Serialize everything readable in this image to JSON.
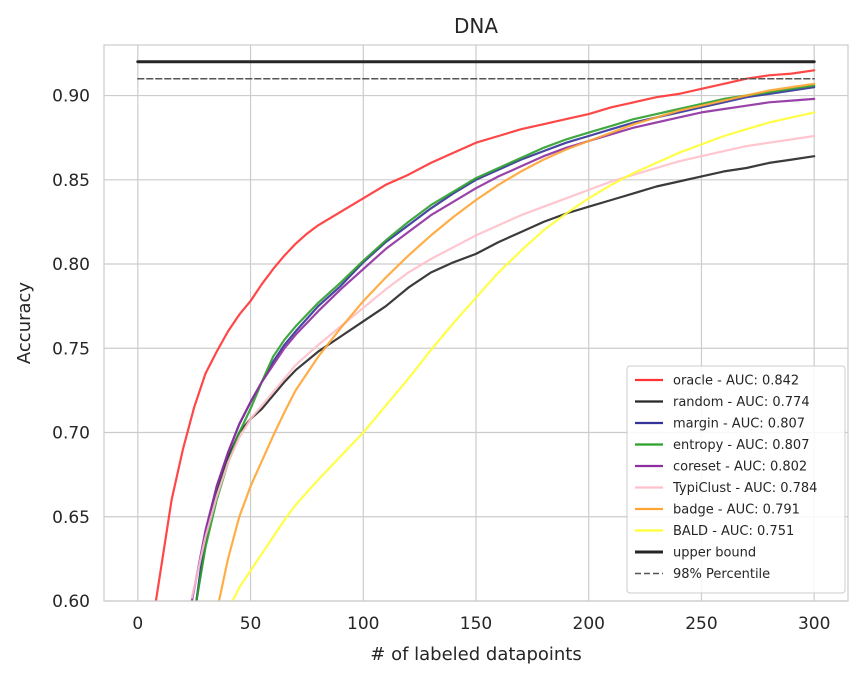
{
  "chart_data": {
    "type": "line",
    "title": "DNA",
    "xlabel": "# of labeled datapoints",
    "ylabel": "Accuracy",
    "xlim": [
      -15,
      315
    ],
    "ylim": [
      0.6,
      0.93
    ],
    "x_ticks": [
      0,
      50,
      100,
      150,
      200,
      250,
      300
    ],
    "y_ticks": [
      0.6,
      0.65,
      0.7,
      0.75,
      0.8,
      0.85,
      0.9
    ],
    "x_tick_labels": [
      "0",
      "50",
      "100",
      "150",
      "200",
      "250",
      "300"
    ],
    "y_tick_labels": [
      "0.60",
      "0.65",
      "0.70",
      "0.75",
      "0.80",
      "0.85",
      "0.90"
    ],
    "grid": true,
    "legend_position": "bottom-right",
    "series": [
      {
        "name": "oracle - AUC: 0.842",
        "color": "#ff3333",
        "style": "solid",
        "x": [
          8,
          15,
          20,
          25,
          30,
          35,
          40,
          45,
          50,
          55,
          60,
          65,
          70,
          75,
          80,
          90,
          100,
          110,
          120,
          130,
          140,
          150,
          160,
          170,
          180,
          190,
          200,
          210,
          220,
          230,
          240,
          250,
          260,
          270,
          280,
          290,
          300
        ],
        "y": [
          0.6,
          0.66,
          0.69,
          0.715,
          0.735,
          0.748,
          0.76,
          0.77,
          0.778,
          0.788,
          0.797,
          0.805,
          0.812,
          0.818,
          0.823,
          0.831,
          0.839,
          0.847,
          0.853,
          0.86,
          0.866,
          0.872,
          0.876,
          0.88,
          0.883,
          0.886,
          0.889,
          0.893,
          0.896,
          0.899,
          0.901,
          0.904,
          0.907,
          0.91,
          0.912,
          0.913,
          0.915
        ]
      },
      {
        "name": "random - AUC: 0.774",
        "color": "#262626",
        "style": "solid",
        "x": [
          26,
          30,
          35,
          40,
          45,
          50,
          55,
          60,
          65,
          70,
          80,
          90,
          100,
          110,
          120,
          130,
          140,
          150,
          160,
          170,
          180,
          190,
          200,
          210,
          220,
          230,
          240,
          250,
          260,
          270,
          280,
          290,
          300
        ],
        "y": [
          0.6,
          0.635,
          0.665,
          0.685,
          0.7,
          0.708,
          0.714,
          0.722,
          0.73,
          0.737,
          0.748,
          0.757,
          0.766,
          0.775,
          0.786,
          0.795,
          0.801,
          0.806,
          0.813,
          0.819,
          0.825,
          0.83,
          0.834,
          0.838,
          0.842,
          0.846,
          0.849,
          0.852,
          0.855,
          0.857,
          0.86,
          0.862,
          0.864
        ]
      },
      {
        "name": "margin - AUC: 0.807",
        "color": "#333399",
        "style": "solid",
        "x": [
          26,
          30,
          35,
          40,
          45,
          50,
          55,
          60,
          65,
          70,
          80,
          90,
          100,
          110,
          120,
          130,
          140,
          150,
          160,
          170,
          180,
          190,
          200,
          210,
          220,
          230,
          240,
          250,
          260,
          270,
          280,
          290,
          300
        ],
        "y": [
          0.6,
          0.64,
          0.668,
          0.688,
          0.705,
          0.718,
          0.73,
          0.742,
          0.752,
          0.76,
          0.775,
          0.787,
          0.801,
          0.813,
          0.823,
          0.833,
          0.842,
          0.85,
          0.856,
          0.862,
          0.867,
          0.872,
          0.876,
          0.88,
          0.884,
          0.887,
          0.89,
          0.893,
          0.896,
          0.899,
          0.901,
          0.903,
          0.905
        ]
      },
      {
        "name": "entropy - AUC: 0.807",
        "color": "#2ca02c",
        "style": "solid",
        "x": [
          26,
          30,
          35,
          40,
          45,
          50,
          55,
          60,
          65,
          70,
          80,
          90,
          100,
          110,
          120,
          130,
          140,
          150,
          160,
          170,
          180,
          190,
          200,
          210,
          220,
          230,
          240,
          250,
          260,
          270,
          280,
          290,
          300
        ],
        "y": [
          0.6,
          0.632,
          0.66,
          0.682,
          0.7,
          0.714,
          0.73,
          0.745,
          0.755,
          0.763,
          0.777,
          0.789,
          0.802,
          0.814,
          0.825,
          0.835,
          0.843,
          0.851,
          0.857,
          0.863,
          0.869,
          0.874,
          0.878,
          0.882,
          0.886,
          0.889,
          0.892,
          0.895,
          0.898,
          0.9,
          0.902,
          0.904,
          0.906
        ]
      },
      {
        "name": "coreset - AUC: 0.802",
        "color": "#8e2fa0",
        "style": "solid",
        "x": [
          24,
          30,
          35,
          40,
          45,
          50,
          55,
          60,
          65,
          70,
          80,
          90,
          100,
          110,
          120,
          130,
          140,
          150,
          160,
          170,
          180,
          190,
          200,
          210,
          220,
          230,
          240,
          250,
          260,
          270,
          280,
          290,
          300
        ],
        "y": [
          0.6,
          0.642,
          0.668,
          0.688,
          0.705,
          0.718,
          0.73,
          0.74,
          0.75,
          0.758,
          0.772,
          0.785,
          0.797,
          0.809,
          0.819,
          0.829,
          0.837,
          0.845,
          0.852,
          0.858,
          0.864,
          0.869,
          0.873,
          0.877,
          0.881,
          0.884,
          0.887,
          0.89,
          0.892,
          0.894,
          0.896,
          0.897,
          0.898
        ]
      },
      {
        "name": "TypiClust - AUC: 0.784",
        "color": "#ffc0cb",
        "style": "solid",
        "x": [
          24,
          30,
          35,
          40,
          45,
          50,
          55,
          60,
          65,
          70,
          80,
          90,
          100,
          110,
          120,
          130,
          140,
          150,
          160,
          170,
          180,
          190,
          200,
          210,
          220,
          230,
          240,
          250,
          260,
          270,
          280,
          290,
          300
        ],
        "y": [
          0.602,
          0.638,
          0.662,
          0.682,
          0.697,
          0.708,
          0.716,
          0.724,
          0.732,
          0.74,
          0.752,
          0.763,
          0.774,
          0.785,
          0.795,
          0.803,
          0.81,
          0.817,
          0.823,
          0.829,
          0.834,
          0.839,
          0.844,
          0.849,
          0.853,
          0.857,
          0.861,
          0.864,
          0.867,
          0.87,
          0.872,
          0.874,
          0.876
        ]
      },
      {
        "name": "badge - AUC: 0.791",
        "color": "#ffa533",
        "style": "solid",
        "x": [
          36,
          40,
          45,
          50,
          55,
          60,
          65,
          70,
          80,
          90,
          100,
          110,
          120,
          130,
          140,
          150,
          160,
          170,
          180,
          190,
          200,
          210,
          220,
          230,
          240,
          250,
          260,
          270,
          280,
          290,
          300
        ],
        "y": [
          0.6,
          0.625,
          0.65,
          0.668,
          0.683,
          0.698,
          0.712,
          0.725,
          0.745,
          0.762,
          0.778,
          0.792,
          0.805,
          0.817,
          0.828,
          0.838,
          0.847,
          0.855,
          0.862,
          0.868,
          0.873,
          0.878,
          0.883,
          0.887,
          0.891,
          0.894,
          0.897,
          0.9,
          0.903,
          0.905,
          0.907
        ]
      },
      {
        "name": "BALD - AUC: 0.751",
        "color": "#ffff33",
        "style": "solid",
        "x": [
          42,
          45,
          50,
          55,
          60,
          65,
          70,
          80,
          90,
          100,
          110,
          120,
          130,
          140,
          150,
          160,
          170,
          180,
          190,
          200,
          210,
          220,
          230,
          240,
          250,
          260,
          270,
          280,
          290,
          300
        ],
        "y": [
          0.6,
          0.608,
          0.618,
          0.628,
          0.638,
          0.648,
          0.657,
          0.672,
          0.686,
          0.7,
          0.716,
          0.732,
          0.749,
          0.765,
          0.78,
          0.795,
          0.808,
          0.82,
          0.83,
          0.839,
          0.847,
          0.854,
          0.86,
          0.866,
          0.871,
          0.876,
          0.88,
          0.884,
          0.887,
          0.89
        ]
      },
      {
        "name": "upper bound",
        "color": "#262626",
        "style": "thick",
        "x": [
          0,
          300
        ],
        "y": [
          0.92,
          0.92
        ]
      },
      {
        "name": "98% Percentile",
        "color": "#555555",
        "style": "dashed",
        "x": [
          0,
          300
        ],
        "y": [
          0.91,
          0.91
        ]
      }
    ]
  }
}
